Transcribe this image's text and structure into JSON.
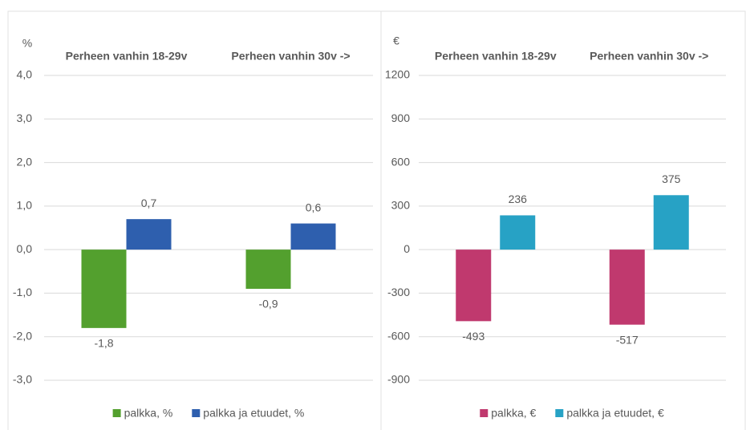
{
  "chart_data": [
    {
      "type": "bar",
      "unit_label": "%",
      "categories": [
        "Perheen vanhin 18-29v",
        "Perheen vanhin 30v ->"
      ],
      "series": [
        {
          "name": "palkka, %",
          "color": "#53a02e",
          "values": [
            -1.8,
            -0.9
          ],
          "value_labels": [
            "-1,8",
            "-0,9"
          ]
        },
        {
          "name": "palkka ja etuudet, %",
          "color": "#2e5fae",
          "values": [
            0.7,
            0.6
          ],
          "value_labels": [
            "0,7",
            "0,6"
          ]
        }
      ],
      "ylim": [
        -3,
        4
      ],
      "yticks": [
        {
          "value": -3,
          "label": "-3,0"
        },
        {
          "value": -2,
          "label": "-2,0"
        },
        {
          "value": -1,
          "label": "-1,0"
        },
        {
          "value": 0,
          "label": "0,0"
        },
        {
          "value": 1,
          "label": "1,0"
        },
        {
          "value": 2,
          "label": "2,0"
        },
        {
          "value": 3,
          "label": "3,0"
        },
        {
          "value": 4,
          "label": "4,0"
        }
      ],
      "grid": true,
      "legend": "bottom"
    },
    {
      "type": "bar",
      "unit_label": "€",
      "categories": [
        "Perheen vanhin 18-29v",
        "Perheen vanhin 30v ->"
      ],
      "series": [
        {
          "name": "palkka, €",
          "color": "#c0396e",
          "values": [
            -493,
            -517
          ]
        },
        {
          "name": "palkka ja etuudet, €",
          "color": "#27a2c5",
          "values": [
            236,
            375
          ]
        }
      ],
      "ylim": [
        -900,
        1200
      ],
      "yticks": [
        -900,
        -600,
        -300,
        0,
        300,
        600,
        900,
        1200
      ],
      "grid": true,
      "legend": "bottom"
    }
  ]
}
